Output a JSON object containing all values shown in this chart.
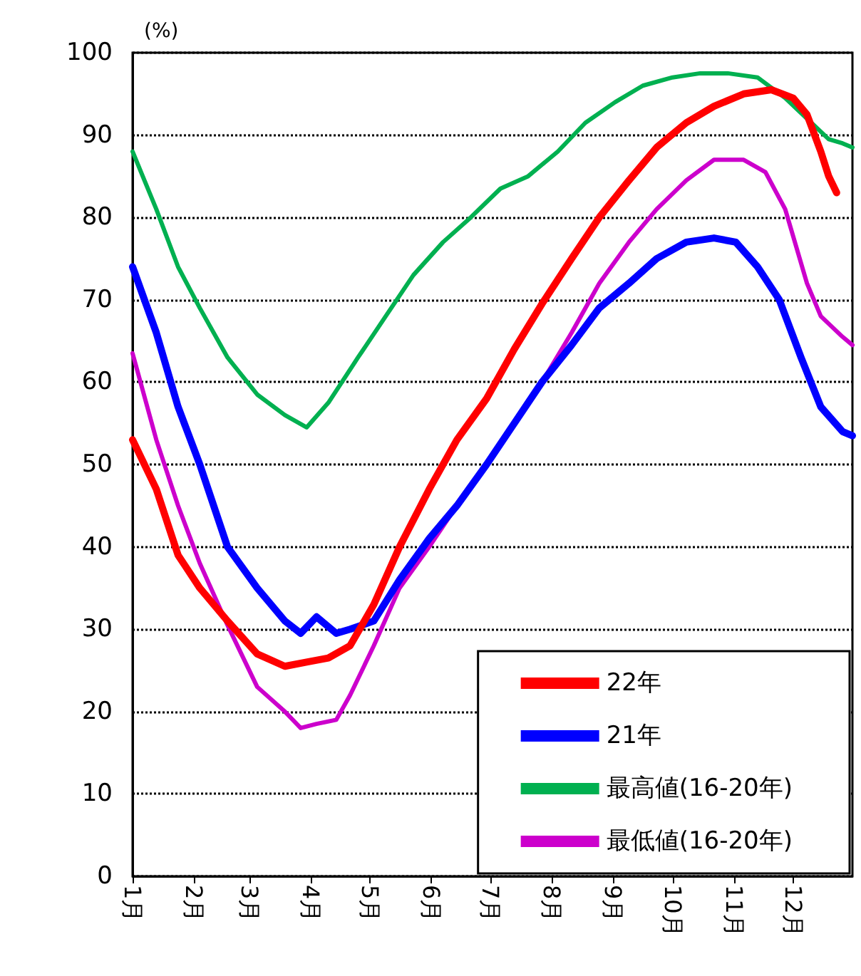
{
  "chart_data": {
    "type": "line",
    "ylabel": "(%)",
    "xlim": [
      "--01-01",
      "--12-31"
    ],
    "ylim": [
      0,
      100
    ],
    "xticks": [
      {
        "value": "--01-01",
        "label": "1月"
      },
      {
        "value": "--02-01",
        "label": "2月"
      },
      {
        "value": "--03-01",
        "label": "3月"
      },
      {
        "value": "--04-01",
        "label": "4月"
      },
      {
        "value": "--05-01",
        "label": "5月"
      },
      {
        "value": "--06-01",
        "label": "6月"
      },
      {
        "value": "--07-01",
        "label": "7月"
      },
      {
        "value": "--08-01",
        "label": "8月"
      },
      {
        "value": "--09-01",
        "label": "9月"
      },
      {
        "value": "--10-01",
        "label": "10月"
      },
      {
        "value": "--11-01",
        "label": "11月"
      },
      {
        "value": "--12-01",
        "label": "12月"
      }
    ],
    "yticks": [
      0,
      10,
      20,
      30,
      40,
      50,
      60,
      70,
      80,
      90,
      100
    ],
    "grid": "y",
    "legend": "bottom right",
    "marker": "none",
    "line_style": "solid",
    "series": [
      {
        "name": "22年",
        "color": "#ff0000",
        "x": [
          "--01-01",
          "--01-13",
          "--01-24",
          "--02-04",
          "--02-18",
          "--03-05",
          "--03-19",
          "--03-30",
          "--04-10",
          "--04-21",
          "--05-03",
          "--05-16",
          "--05-31",
          "--06-14",
          "--06-29",
          "--07-13",
          "--07-27",
          "--08-11",
          "--08-25",
          "--09-09",
          "--09-23",
          "--10-08",
          "--10-22",
          "--11-06",
          "--11-20",
          "--12-01",
          "--12-08",
          "--12-15",
          "--12-19",
          "--12-23"
        ],
        "values": [
          53,
          47,
          39,
          35,
          31,
          27,
          25.5,
          26,
          26.5,
          28,
          33,
          40,
          47,
          53,
          58,
          64,
          69.5,
          75,
          80,
          84.5,
          88.5,
          91.5,
          93.5,
          95,
          95.5,
          94.5,
          92.5,
          88,
          85,
          83
        ]
      },
      {
        "name": "21年",
        "color": "#0000ff",
        "x": [
          "--01-01",
          "--01-13",
          "--01-24",
          "--02-04",
          "--02-18",
          "--03-05",
          "--03-19",
          "--03-27",
          "--04-04",
          "--04-14",
          "--04-21",
          "--05-03",
          "--05-16",
          "--05-31",
          "--06-14",
          "--06-29",
          "--07-13",
          "--07-27",
          "--08-11",
          "--08-25",
          "--09-09",
          "--09-23",
          "--10-08",
          "--10-22",
          "--11-02",
          "--11-13",
          "--11-24",
          "--12-05",
          "--12-15",
          "--12-26",
          "--12-31"
        ],
        "values": [
          74,
          66,
          57,
          50,
          40,
          35,
          31,
          29.5,
          31.5,
          29.5,
          30,
          31,
          36,
          41,
          45,
          50,
          55,
          60,
          64.5,
          69,
          72,
          75,
          77,
          77.5,
          77,
          74,
          70,
          63,
          57,
          54,
          53.5
        ]
      },
      {
        "name": "最高値(16-20年)",
        "color": "#00b050",
        "x": [
          "--01-01",
          "--01-13",
          "--01-24",
          "--02-04",
          "--02-18",
          "--03-05",
          "--03-19",
          "--03-30",
          "--04-10",
          "--04-25",
          "--05-09",
          "--05-23",
          "--06-07",
          "--06-21",
          "--07-06",
          "--07-20",
          "--08-04",
          "--08-18",
          "--09-02",
          "--09-16",
          "--10-01",
          "--10-15",
          "--10-29",
          "--11-13",
          "--11-27",
          "--12-08",
          "--12-19",
          "--12-26",
          "--12-31"
        ],
        "values": [
          88,
          81,
          74,
          69,
          63,
          58.5,
          56,
          54.5,
          57.5,
          63,
          68,
          73,
          77,
          80,
          83.5,
          85,
          88,
          91.5,
          94,
          96,
          97,
          97.5,
          97.5,
          97,
          94.5,
          92,
          89.5,
          89,
          88.5
        ]
      },
      {
        "name": "最低値(16-20年)",
        "color": "#cc00cc",
        "x": [
          "--01-01",
          "--01-13",
          "--01-24",
          "--02-04",
          "--02-18",
          "--03-05",
          "--03-19",
          "--03-27",
          "--04-04",
          "--04-14",
          "--04-21",
          "--05-03",
          "--05-16",
          "--05-31",
          "--06-14",
          "--06-29",
          "--07-13",
          "--07-27",
          "--08-11",
          "--08-25",
          "--09-09",
          "--09-23",
          "--10-08",
          "--10-22",
          "--11-06",
          "--11-17",
          "--11-27",
          "--12-08",
          "--12-15",
          "--12-26",
          "--12-31"
        ],
        "values": [
          63.5,
          53,
          45,
          38,
          30.5,
          23,
          20,
          18,
          18.5,
          19,
          22,
          28,
          35,
          40,
          45,
          50,
          55,
          60,
          66,
          72,
          77,
          81,
          84.5,
          87,
          87,
          85.5,
          81,
          72,
          68,
          65.5,
          64.5
        ]
      }
    ]
  }
}
